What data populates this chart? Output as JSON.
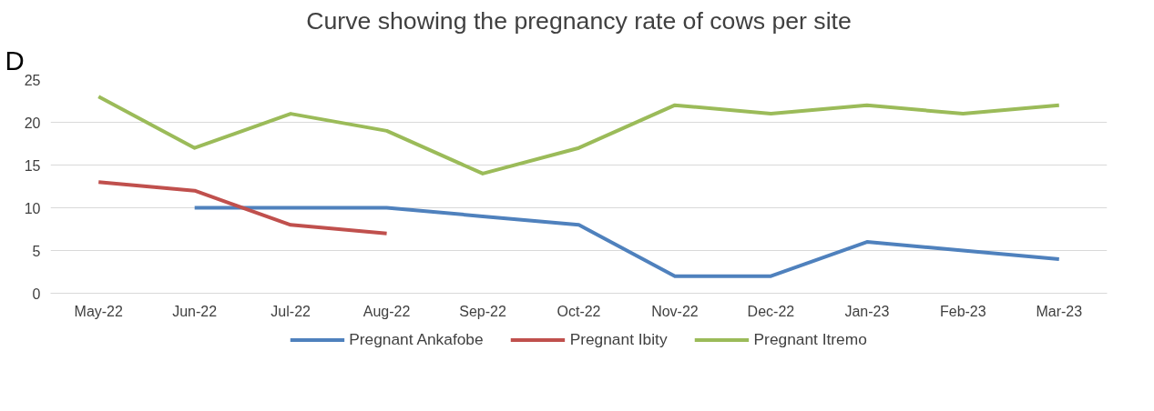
{
  "chart_data": {
    "type": "line",
    "title": "Curve showing the pregnancy rate of cows per site",
    "annotations": [
      "D"
    ],
    "categories": [
      "May-22",
      "Jun-22",
      "Jul-22",
      "Aug-22",
      "Sep-22",
      "Oct-22",
      "Nov-22",
      "Dec-22",
      "Jan-23",
      "Feb-23",
      "Mar-23"
    ],
    "series": [
      {
        "name": "Pregnant Ankafobe",
        "color": "#4f81bd",
        "values": [
          null,
          10,
          10,
          10,
          9,
          8,
          2,
          2,
          6,
          5,
          4
        ]
      },
      {
        "name": "Pregnant Ibity",
        "color": "#c0504d",
        "values": [
          13,
          12,
          8,
          7,
          null,
          null,
          null,
          null,
          null,
          null,
          null
        ]
      },
      {
        "name": "Pregnant Itremo",
        "color": "#9bbb59",
        "values": [
          23,
          17,
          21,
          19,
          14,
          17,
          22,
          21,
          22,
          21,
          22
        ]
      }
    ],
    "ylim": [
      0,
      25
    ],
    "yticks": [
      0,
      5,
      10,
      15,
      20,
      25
    ],
    "grid": "y",
    "legend": "bottom",
    "marker": "none",
    "line_style": "solid"
  }
}
